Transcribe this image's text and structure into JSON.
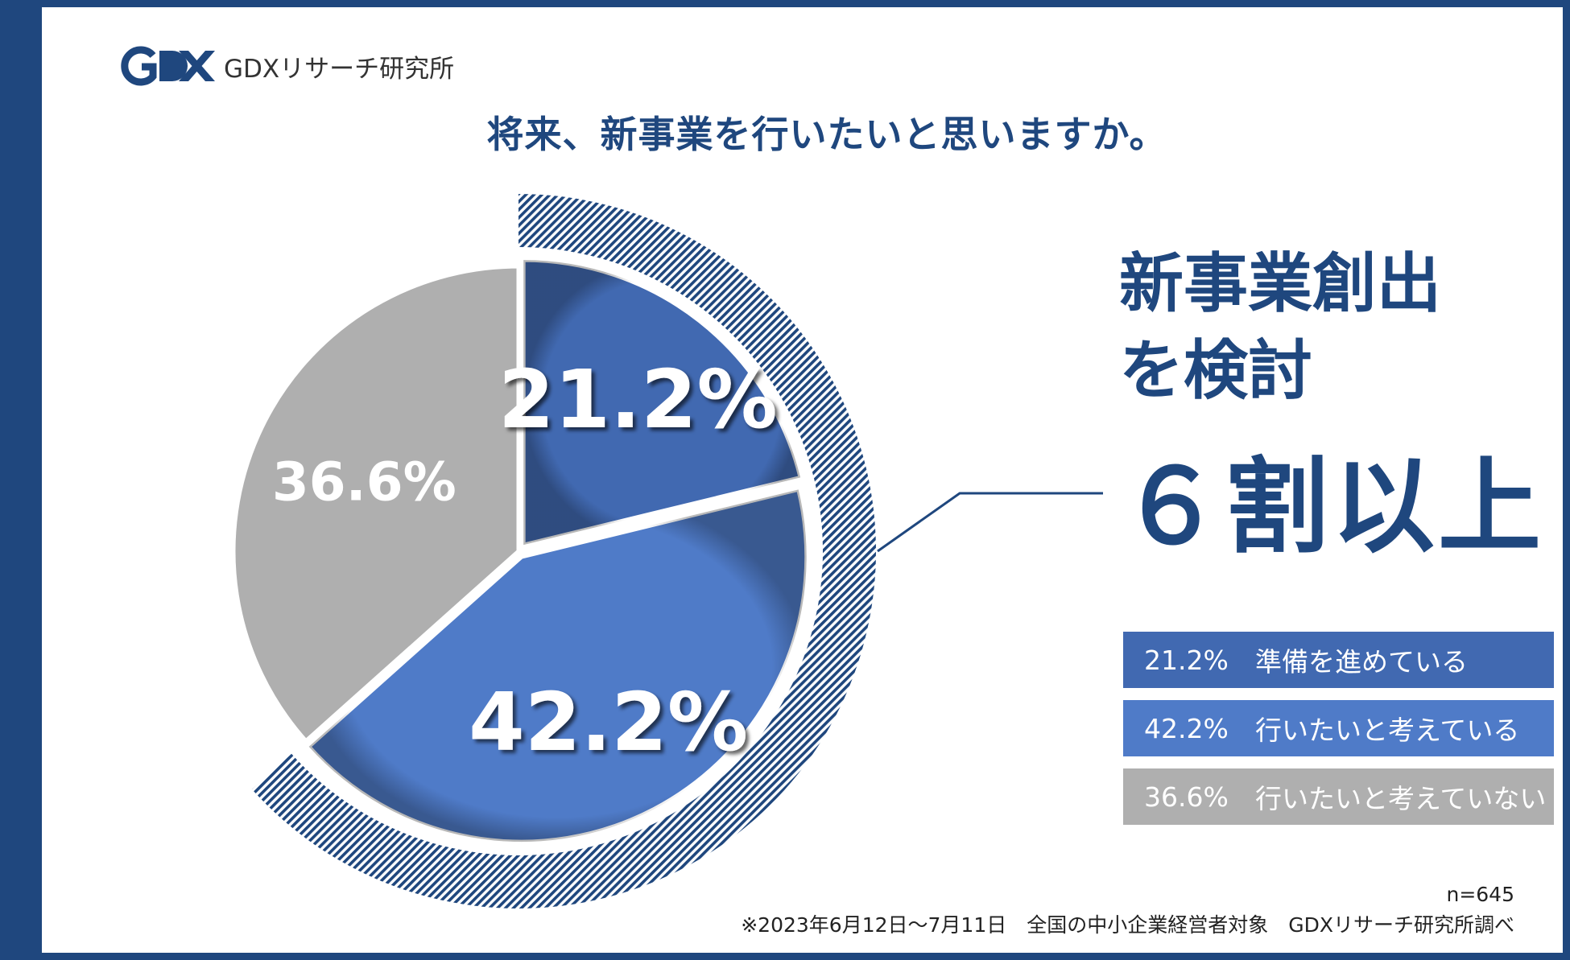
{
  "brand": {
    "logo_mark": "GDX",
    "name": "GDXリサーチ研究所"
  },
  "title": "将来、新事業を行いたいと思いますか。",
  "callout": {
    "headline_line1": "新事業創出",
    "headline_line2": "を検討",
    "big_text": "６割以上"
  },
  "chart_data": {
    "type": "pie",
    "start_angle_deg": 0,
    "direction": "clockwise",
    "slices": [
      {
        "value": 21.2,
        "label": "21.2%",
        "legend": "準備を進めている",
        "color": "#4169b1"
      },
      {
        "value": 42.2,
        "label": "42.2%",
        "legend": "行いたいと考えている",
        "color": "#4f7bc8"
      },
      {
        "value": 36.6,
        "label": "36.6%",
        "legend": "行いたいと考えていない",
        "color": "#afafaf"
      }
    ],
    "highlight": "first two slices grouped by hatched outer arc",
    "legend_position": "right"
  },
  "footer": {
    "sample": "n=645",
    "note": "※2023年6月12日～7月11日　全国の中小企業経営者対象　GDXリサーチ研究所調べ"
  }
}
